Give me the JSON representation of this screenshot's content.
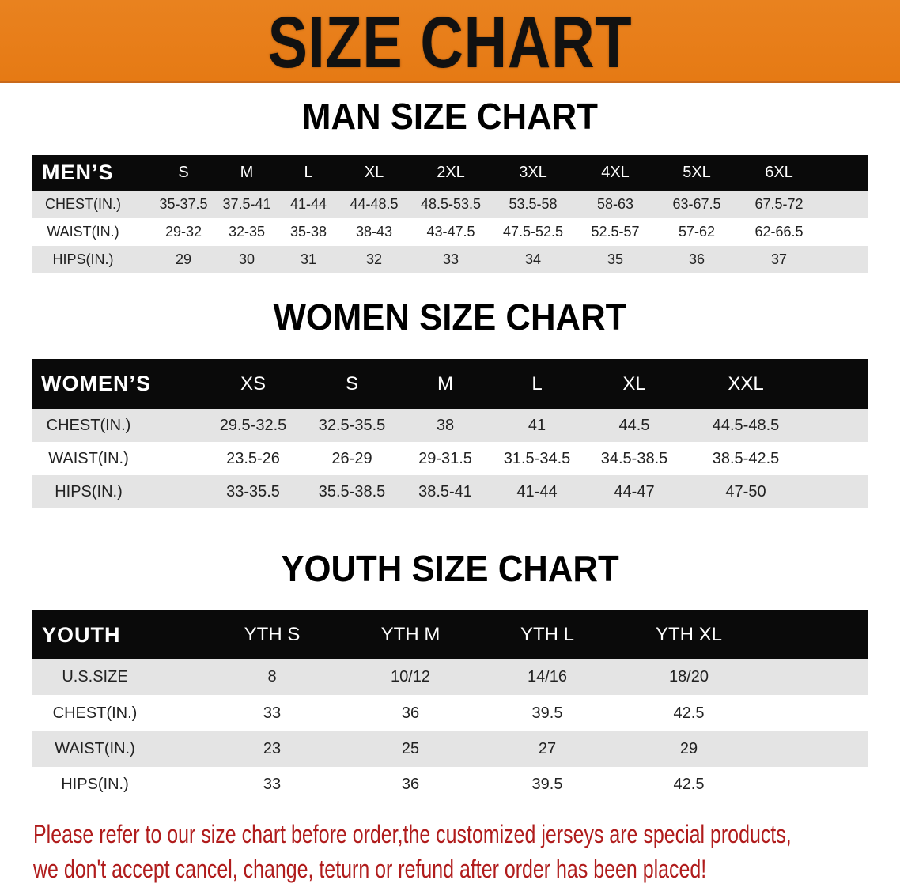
{
  "banner": {
    "title": "SIZE CHART",
    "color": "#E8801E"
  },
  "men": {
    "title": "MAN SIZE CHART",
    "header": [
      "MEN’S",
      "S",
      "M",
      "L",
      "XL",
      "2XL",
      "3XL",
      "4XL",
      "5XL",
      "6XL"
    ],
    "rows": [
      [
        "CHEST(IN.)",
        "35-37.5",
        "37.5-41",
        "41-44",
        "44-48.5",
        "48.5-53.5",
        "53.5-58",
        "58-63",
        "63-67.5",
        "67.5-72"
      ],
      [
        "WAIST(IN.)",
        "29-32",
        "32-35",
        "35-38",
        "38-43",
        "43-47.5",
        "47.5-52.5",
        "52.5-57",
        "57-62",
        "62-66.5"
      ],
      [
        "HIPS(IN.)",
        "29",
        "30",
        "31",
        "32",
        "33",
        "34",
        "35",
        "36",
        "37"
      ]
    ]
  },
  "women": {
    "title": "WOMEN SIZE CHART",
    "header": [
      "WOMEN’S",
      "XS",
      "S",
      "M",
      "L",
      "XL",
      "XXL"
    ],
    "rows": [
      [
        "CHEST(IN.)",
        "29.5-32.5",
        "32.5-35.5",
        "38",
        "41",
        "44.5",
        "44.5-48.5"
      ],
      [
        "WAIST(IN.)",
        "23.5-26",
        "26-29",
        "29-31.5",
        "31.5-34.5",
        "34.5-38.5",
        "38.5-42.5"
      ],
      [
        "HIPS(IN.)",
        "33-35.5",
        "35.5-38.5",
        "38.5-41",
        "41-44",
        "44-47",
        "47-50"
      ]
    ]
  },
  "youth": {
    "title": "YOUTH SIZE CHART",
    "header": [
      "YOUTH",
      "YTH S",
      "YTH M",
      "YTH L",
      "YTH XL"
    ],
    "rows": [
      [
        "U.S.SIZE",
        "8",
        "10/12",
        "14/16",
        "18/20"
      ],
      [
        "CHEST(IN.)",
        "33",
        "36",
        "39.5",
        "42.5"
      ],
      [
        "WAIST(IN.)",
        "23",
        "25",
        "27",
        "29"
      ],
      [
        "HIPS(IN.)",
        "33",
        "36",
        "39.5",
        "42.5"
      ]
    ]
  },
  "notice": {
    "line1": "Please refer to our size chart before order,the customized jerseys are special products,",
    "line2": "we don't accept cancel, change, teturn or refund after order has been placed!",
    "color": "#B01C1C"
  }
}
